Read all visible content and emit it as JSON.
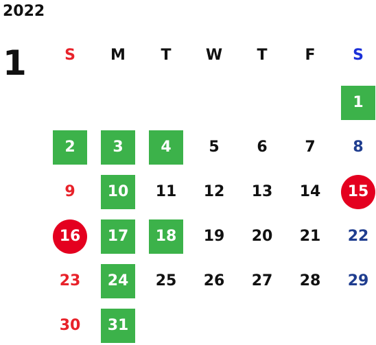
{
  "calendar": {
    "year": "2022",
    "month": "1",
    "weekdays": [
      "S",
      "M",
      "T",
      "W",
      "T",
      "F",
      "S"
    ],
    "colors": {
      "sunday": "#e8222a",
      "saturday": "#1f3d8f",
      "saturday_header": "#1a2fd8",
      "weekday": "#111111",
      "green_highlight": "#3cb24a",
      "red_highlight": "#e4001f"
    },
    "weeks": [
      [
        {
          "day": "",
          "style": "none"
        },
        {
          "day": "",
          "style": "none"
        },
        {
          "day": "",
          "style": "none"
        },
        {
          "day": "",
          "style": "none"
        },
        {
          "day": "",
          "style": "none"
        },
        {
          "day": "",
          "style": "none"
        },
        {
          "day": "1",
          "style": "green"
        }
      ],
      [
        {
          "day": "2",
          "style": "green"
        },
        {
          "day": "3",
          "style": "green"
        },
        {
          "day": "4",
          "style": "green"
        },
        {
          "day": "5",
          "style": "none"
        },
        {
          "day": "6",
          "style": "none"
        },
        {
          "day": "7",
          "style": "none"
        },
        {
          "day": "8",
          "style": "none"
        }
      ],
      [
        {
          "day": "9",
          "style": "none"
        },
        {
          "day": "10",
          "style": "green"
        },
        {
          "day": "11",
          "style": "none"
        },
        {
          "day": "12",
          "style": "none"
        },
        {
          "day": "13",
          "style": "none"
        },
        {
          "day": "14",
          "style": "none"
        },
        {
          "day": "15",
          "style": "red-circle"
        }
      ],
      [
        {
          "day": "16",
          "style": "red-circle"
        },
        {
          "day": "17",
          "style": "green"
        },
        {
          "day": "18",
          "style": "green"
        },
        {
          "day": "19",
          "style": "none"
        },
        {
          "day": "20",
          "style": "none"
        },
        {
          "day": "21",
          "style": "none"
        },
        {
          "day": "22",
          "style": "none"
        }
      ],
      [
        {
          "day": "23",
          "style": "none"
        },
        {
          "day": "24",
          "style": "green"
        },
        {
          "day": "25",
          "style": "none"
        },
        {
          "day": "26",
          "style": "none"
        },
        {
          "day": "27",
          "style": "none"
        },
        {
          "day": "28",
          "style": "none"
        },
        {
          "day": "29",
          "style": "none"
        }
      ],
      [
        {
          "day": "30",
          "style": "none"
        },
        {
          "day": "31",
          "style": "green"
        },
        {
          "day": "",
          "style": "none"
        },
        {
          "day": "",
          "style": "none"
        },
        {
          "day": "",
          "style": "none"
        },
        {
          "day": "",
          "style": "none"
        },
        {
          "day": "",
          "style": "none"
        }
      ]
    ]
  }
}
